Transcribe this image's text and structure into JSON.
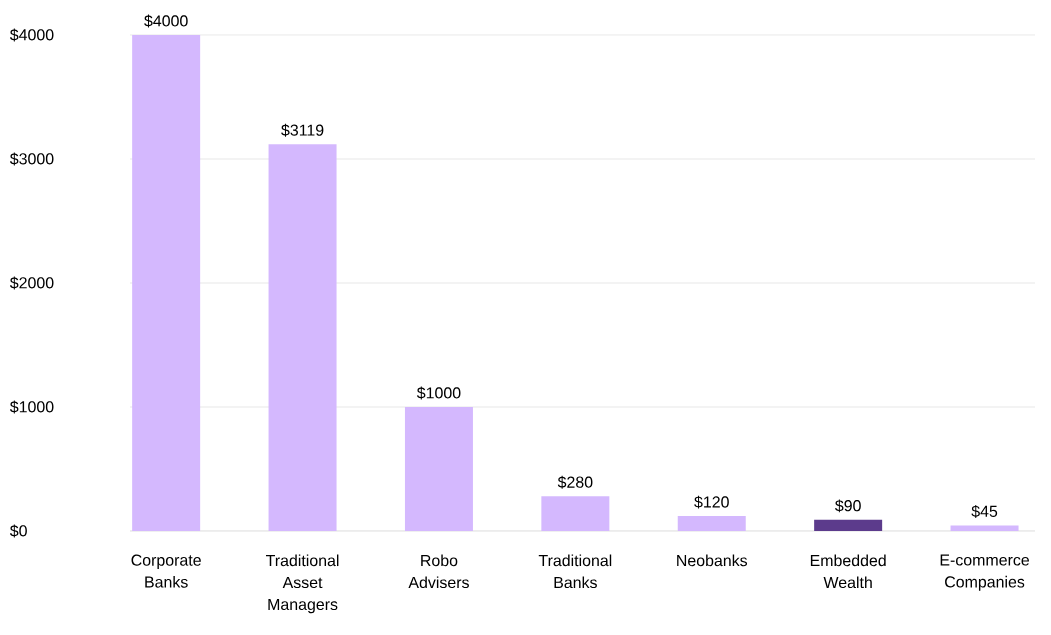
{
  "chart_data": {
    "type": "bar",
    "categories": [
      "Corporate Banks",
      "Traditional Asset Managers",
      "Robo Advisers",
      "Traditional Banks",
      "Neobanks",
      "Embedded Wealth",
      "E-commerce Companies"
    ],
    "values": [
      4000,
      3119,
      1000,
      280,
      120,
      90,
      45
    ],
    "colors": [
      "#d4b8fe",
      "#d4b8fe",
      "#d4b8fe",
      "#d4b8fe",
      "#d4b8fe",
      "#5c3b8c",
      "#d4b8fe"
    ],
    "value_labels": [
      "$4000",
      "$3119",
      "$1000",
      "$280",
      "$120",
      "$90",
      "$45"
    ],
    "ylim": [
      0,
      4000
    ],
    "yticks": [
      {
        "value": 0,
        "label": "$0"
      },
      {
        "value": 1000,
        "label": "$1000"
      },
      {
        "value": 2000,
        "label": "$2000"
      },
      {
        "value": 3000,
        "label": "$3000"
      },
      {
        "value": 4000,
        "label": "$4000"
      }
    ],
    "grid": "y"
  }
}
